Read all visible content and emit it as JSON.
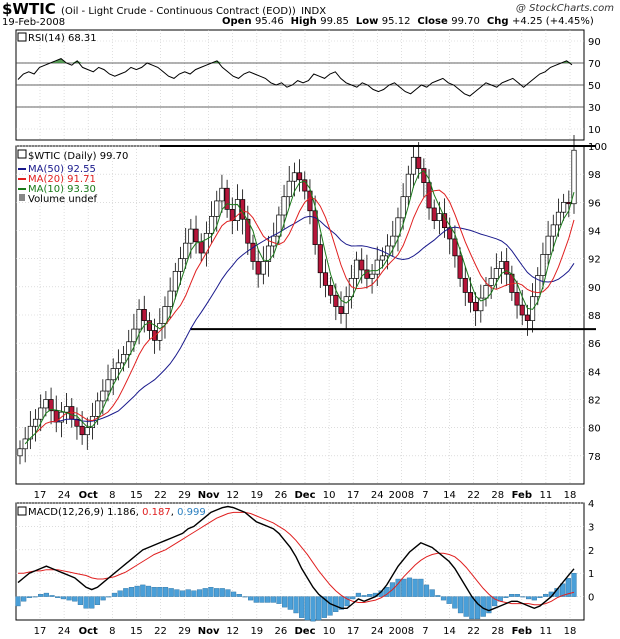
{
  "header": {
    "symbol": "$WTIC",
    "title": "(Oil - Light Crude - Continuous Contract (EOD))",
    "exchange": "INDX",
    "date": "19-Feb-2008",
    "credit": "@ StockCharts.com",
    "open_label": "Open",
    "open": "95.46",
    "high_label": "High",
    "high": "99.85",
    "low_label": "Low",
    "low": "95.12",
    "close_label": "Close",
    "close": "99.70",
    "chg_label": "Chg",
    "chg": "+4.25 (+4.45%)"
  },
  "chart_data": [
    {
      "type": "line",
      "panel": "rsi",
      "label": "RSI(14) 68.31",
      "ylim": [
        0,
        100
      ],
      "yticks": [
        10,
        30,
        50,
        70,
        90
      ],
      "reference_lines": [
        30,
        50,
        70
      ],
      "series": [
        {
          "name": "RSI(14)",
          "color": "#000000",
          "values": [
            55,
            60,
            62,
            60,
            66,
            68,
            70,
            72,
            74,
            70,
            68,
            72,
            66,
            64,
            62,
            66,
            64,
            60,
            58,
            60,
            62,
            66,
            64,
            66,
            70,
            68,
            66,
            62,
            58,
            56,
            60,
            62,
            60,
            64,
            66,
            68,
            70,
            72,
            66,
            62,
            58,
            56,
            60,
            62,
            60,
            58,
            56,
            52,
            50,
            52,
            48,
            50,
            54,
            52,
            54,
            60,
            58,
            56,
            60,
            62,
            56,
            52,
            50,
            48,
            52,
            50,
            46,
            44,
            46,
            50,
            52,
            48,
            44,
            42,
            46,
            50,
            48,
            52,
            54,
            56,
            52,
            50,
            46,
            42,
            40,
            44,
            48,
            52,
            50,
            48,
            52,
            54,
            56,
            52,
            48,
            52,
            56,
            60,
            62,
            66,
            68,
            70,
            72,
            68.31
          ]
        }
      ]
    },
    {
      "type": "line",
      "panel": "price",
      "label": "$WTIC (Daily) 99.70",
      "ylim": [
        76,
        100
      ],
      "yticks": [
        78,
        80,
        82,
        84,
        86,
        88,
        90,
        92,
        94,
        96,
        98,
        100
      ],
      "x_tick_labels": [
        "17",
        "24",
        "Oct",
        "8",
        "15",
        "22",
        "29",
        "Nov",
        "12",
        "19",
        "26",
        "Dec",
        "10",
        "17",
        "24",
        "2008",
        "7",
        "14",
        "22",
        "28",
        "Feb",
        "11",
        "18"
      ],
      "legend": [
        {
          "name": "MA(50) 92.55",
          "color": "#1a1a8c"
        },
        {
          "name": "MA(20) 91.71",
          "color": "#e02020"
        },
        {
          "name": "MA(10) 93.30",
          "color": "#1a7a1a"
        },
        {
          "name": "Volume undef",
          "color": "#555555"
        }
      ],
      "horizontal_lines": [
        100,
        87
      ],
      "candles_close": [
        78.5,
        79.2,
        80.1,
        80.6,
        81.4,
        82.0,
        81.2,
        80.4,
        81.1,
        81.5,
        80.6,
        80.1,
        79.5,
        80.0,
        80.8,
        81.9,
        82.6,
        83.4,
        84.2,
        84.6,
        85.2,
        86.1,
        87.0,
        88.4,
        87.6,
        86.9,
        86.2,
        87.4,
        88.6,
        89.7,
        91.1,
        92.0,
        93.1,
        94.1,
        93.2,
        92.4,
        93.8,
        95.0,
        96.1,
        97.0,
        95.5,
        94.7,
        96.2,
        94.8,
        93.1,
        91.8,
        90.9,
        91.8,
        92.9,
        93.6,
        95.1,
        96.4,
        97.5,
        98.1,
        97.6,
        96.8,
        95.4,
        93.0,
        91.0,
        90.1,
        89.4,
        88.6,
        88.1,
        89.3,
        90.6,
        91.9,
        91.2,
        90.6,
        90.9,
        91.9,
        92.2,
        92.9,
        93.6,
        94.9,
        96.4,
        98.0,
        99.2,
        98.4,
        97.4,
        95.6,
        94.7,
        95.2,
        94.2,
        93.4,
        92.2,
        90.6,
        89.6,
        88.9,
        88.3,
        89.2,
        90.1,
        90.6,
        91.3,
        91.8,
        90.9,
        89.6,
        88.7,
        88.0,
        87.6,
        89.3,
        90.8,
        92.3,
        93.6,
        94.4,
        95.3,
        96.0,
        95.9,
        99.7
      ]
    },
    {
      "type": "line",
      "panel": "macd",
      "label_prefix": "MACD(12,26,9)",
      "macd_value": "1.186",
      "signal_value": "0.187",
      "hist_value": "0.999",
      "ylim": [
        -1,
        4
      ],
      "yticks": [
        0,
        1,
        2,
        3,
        4
      ],
      "x_tick_labels": [
        "17",
        "24",
        "Oct",
        "8",
        "15",
        "22",
        "29",
        "Nov",
        "12",
        "19",
        "26",
        "Dec",
        "10",
        "17",
        "24",
        "2008",
        "7",
        "14",
        "22",
        "28",
        "Feb",
        "11",
        "18"
      ],
      "series": [
        {
          "name": "MACD",
          "color": "#000000",
          "values": [
            0.6,
            0.8,
            1.0,
            1.1,
            1.2,
            1.3,
            1.2,
            1.1,
            1.0,
            0.9,
            0.8,
            0.6,
            0.4,
            0.3,
            0.4,
            0.6,
            0.8,
            1.0,
            1.2,
            1.4,
            1.6,
            1.8,
            2.0,
            2.1,
            2.2,
            2.3,
            2.4,
            2.5,
            2.6,
            2.7,
            2.9,
            3.0,
            3.2,
            3.4,
            3.6,
            3.7,
            3.8,
            3.85,
            3.8,
            3.7,
            3.6,
            3.4,
            3.2,
            3.1,
            3.0,
            2.9,
            2.7,
            2.4,
            2.1,
            1.7,
            1.2,
            0.8,
            0.4,
            0.1,
            -0.1,
            -0.3,
            -0.4,
            -0.5,
            -0.5,
            -0.3,
            -0.1,
            -0.2,
            -0.1,
            0.0,
            0.2,
            0.5,
            0.9,
            1.3,
            1.6,
            1.9,
            2.1,
            2.3,
            2.2,
            2.1,
            1.9,
            1.7,
            1.5,
            1.2,
            0.8,
            0.4,
            0.0,
            -0.3,
            -0.5,
            -0.6,
            -0.5,
            -0.4,
            -0.3,
            -0.2,
            -0.2,
            -0.3,
            -0.4,
            -0.5,
            -0.4,
            -0.2,
            0.0,
            0.3,
            0.6,
            0.9,
            1.186
          ]
        },
        {
          "name": "Signal",
          "color": "#e02020",
          "values": [
            1.0,
            1.0,
            1.05,
            1.1,
            1.1,
            1.15,
            1.15,
            1.15,
            1.1,
            1.05,
            1.0,
            0.95,
            0.9,
            0.8,
            0.75,
            0.75,
            0.8,
            0.85,
            0.95,
            1.05,
            1.2,
            1.35,
            1.5,
            1.65,
            1.8,
            1.9,
            2.0,
            2.15,
            2.3,
            2.45,
            2.6,
            2.75,
            2.9,
            3.05,
            3.2,
            3.35,
            3.45,
            3.55,
            3.6,
            3.6,
            3.6,
            3.55,
            3.45,
            3.35,
            3.25,
            3.15,
            3.0,
            2.85,
            2.65,
            2.4,
            2.1,
            1.8,
            1.45,
            1.1,
            0.8,
            0.5,
            0.25,
            0.05,
            -0.1,
            -0.2,
            -0.25,
            -0.25,
            -0.2,
            -0.15,
            -0.05,
            0.1,
            0.3,
            0.55,
            0.85,
            1.1,
            1.35,
            1.55,
            1.7,
            1.8,
            1.85,
            1.85,
            1.8,
            1.7,
            1.5,
            1.25,
            0.95,
            0.65,
            0.35,
            0.1,
            -0.1,
            -0.2,
            -0.25,
            -0.3,
            -0.3,
            -0.3,
            -0.3,
            -0.35,
            -0.35,
            -0.3,
            -0.2,
            -0.05,
            0.05,
            0.12,
            0.187
          ]
        }
      ]
    }
  ]
}
